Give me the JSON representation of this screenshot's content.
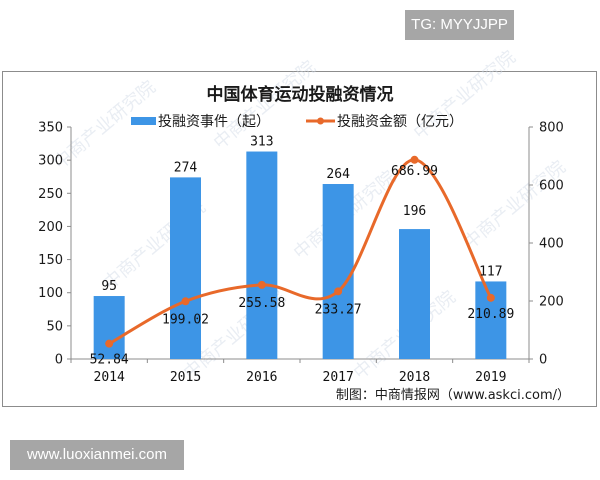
{
  "badges": {
    "top": "TG: MYYJJPP",
    "bottom": "www.luoxianmei.com"
  },
  "watermark": "中商产业研究院",
  "source_text": "制图：中商情报网（www.askci.com/）",
  "colors": {
    "bar": "#3d95e6",
    "line": "#e8692a",
    "axis": "#8c8c8c",
    "badge_bg": "#a6a6a6"
  },
  "chart_data": {
    "type": "bar+line",
    "title": "中国体育运动投融资情况",
    "categories": [
      "2014",
      "2015",
      "2016",
      "2017",
      "2018",
      "2019"
    ],
    "series": [
      {
        "name": "投融资事件（起）",
        "type": "bar",
        "axis": "left",
        "values": [
          95,
          274,
          313,
          264,
          196,
          117
        ],
        "labels": [
          "95",
          "274",
          "313",
          "264",
          "196",
          "117"
        ]
      },
      {
        "name": "投融资金额（亿元）",
        "type": "line",
        "axis": "right",
        "smooth": true,
        "values": [
          52.84,
          199.02,
          255.58,
          233.27,
          686.99,
          210.89
        ],
        "labels": [
          "52.84",
          "199.02",
          "255.58",
          "233.27",
          "686.99",
          "210.89"
        ]
      }
    ],
    "y_left": {
      "ylim": [
        0,
        350
      ],
      "ticks": [
        "0",
        "50",
        "100",
        "150",
        "200",
        "250",
        "300",
        "350"
      ]
    },
    "y_right": {
      "ylim": [
        0,
        800
      ],
      "ticks": [
        "0",
        "200",
        "400",
        "600",
        "800"
      ]
    },
    "xlabel": "",
    "ylabel": "",
    "legend_position": "top",
    "grid": false
  }
}
